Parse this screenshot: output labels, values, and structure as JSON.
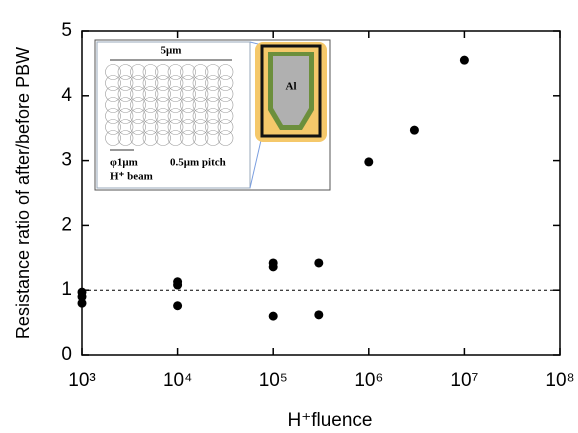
{
  "chart_data": {
    "type": "scatter",
    "xlabel": "H⁺fluence",
    "ylabel": "Resistance ratio of after/before PBW",
    "log_x": true,
    "xlim": [
      1000,
      100000000
    ],
    "xticks": [
      {
        "value": 1000,
        "label": "10³"
      },
      {
        "value": 10000,
        "label": "10⁴"
      },
      {
        "value": 100000,
        "label": "10⁵"
      },
      {
        "value": 1000000,
        "label": "10⁶"
      },
      {
        "value": 10000000,
        "label": "10⁷"
      },
      {
        "value": 100000000,
        "label": "10⁸"
      }
    ],
    "ylim": [
      0,
      5
    ],
    "yticks": [
      0,
      1,
      2,
      3,
      4,
      5
    ],
    "reference_line": 1,
    "series": [
      {
        "color": "#000000",
        "x": [
          1000,
          1000,
          1000,
          10000,
          10000,
          10000,
          100000,
          100000,
          100000,
          300000,
          300000,
          1000000,
          3000000,
          10000000
        ],
        "values": [
          0.97,
          0.9,
          0.8,
          1.13,
          1.08,
          0.76,
          1.42,
          1.36,
          0.6,
          1.42,
          0.62,
          2.98,
          3.47,
          4.55
        ]
      }
    ],
    "inset": {
      "width_label": "5μm",
      "beam_size": "φ1μm",
      "beam_name": "H⁺ beam",
      "pitch": "0.5μm pitch",
      "metal": "Al"
    }
  }
}
